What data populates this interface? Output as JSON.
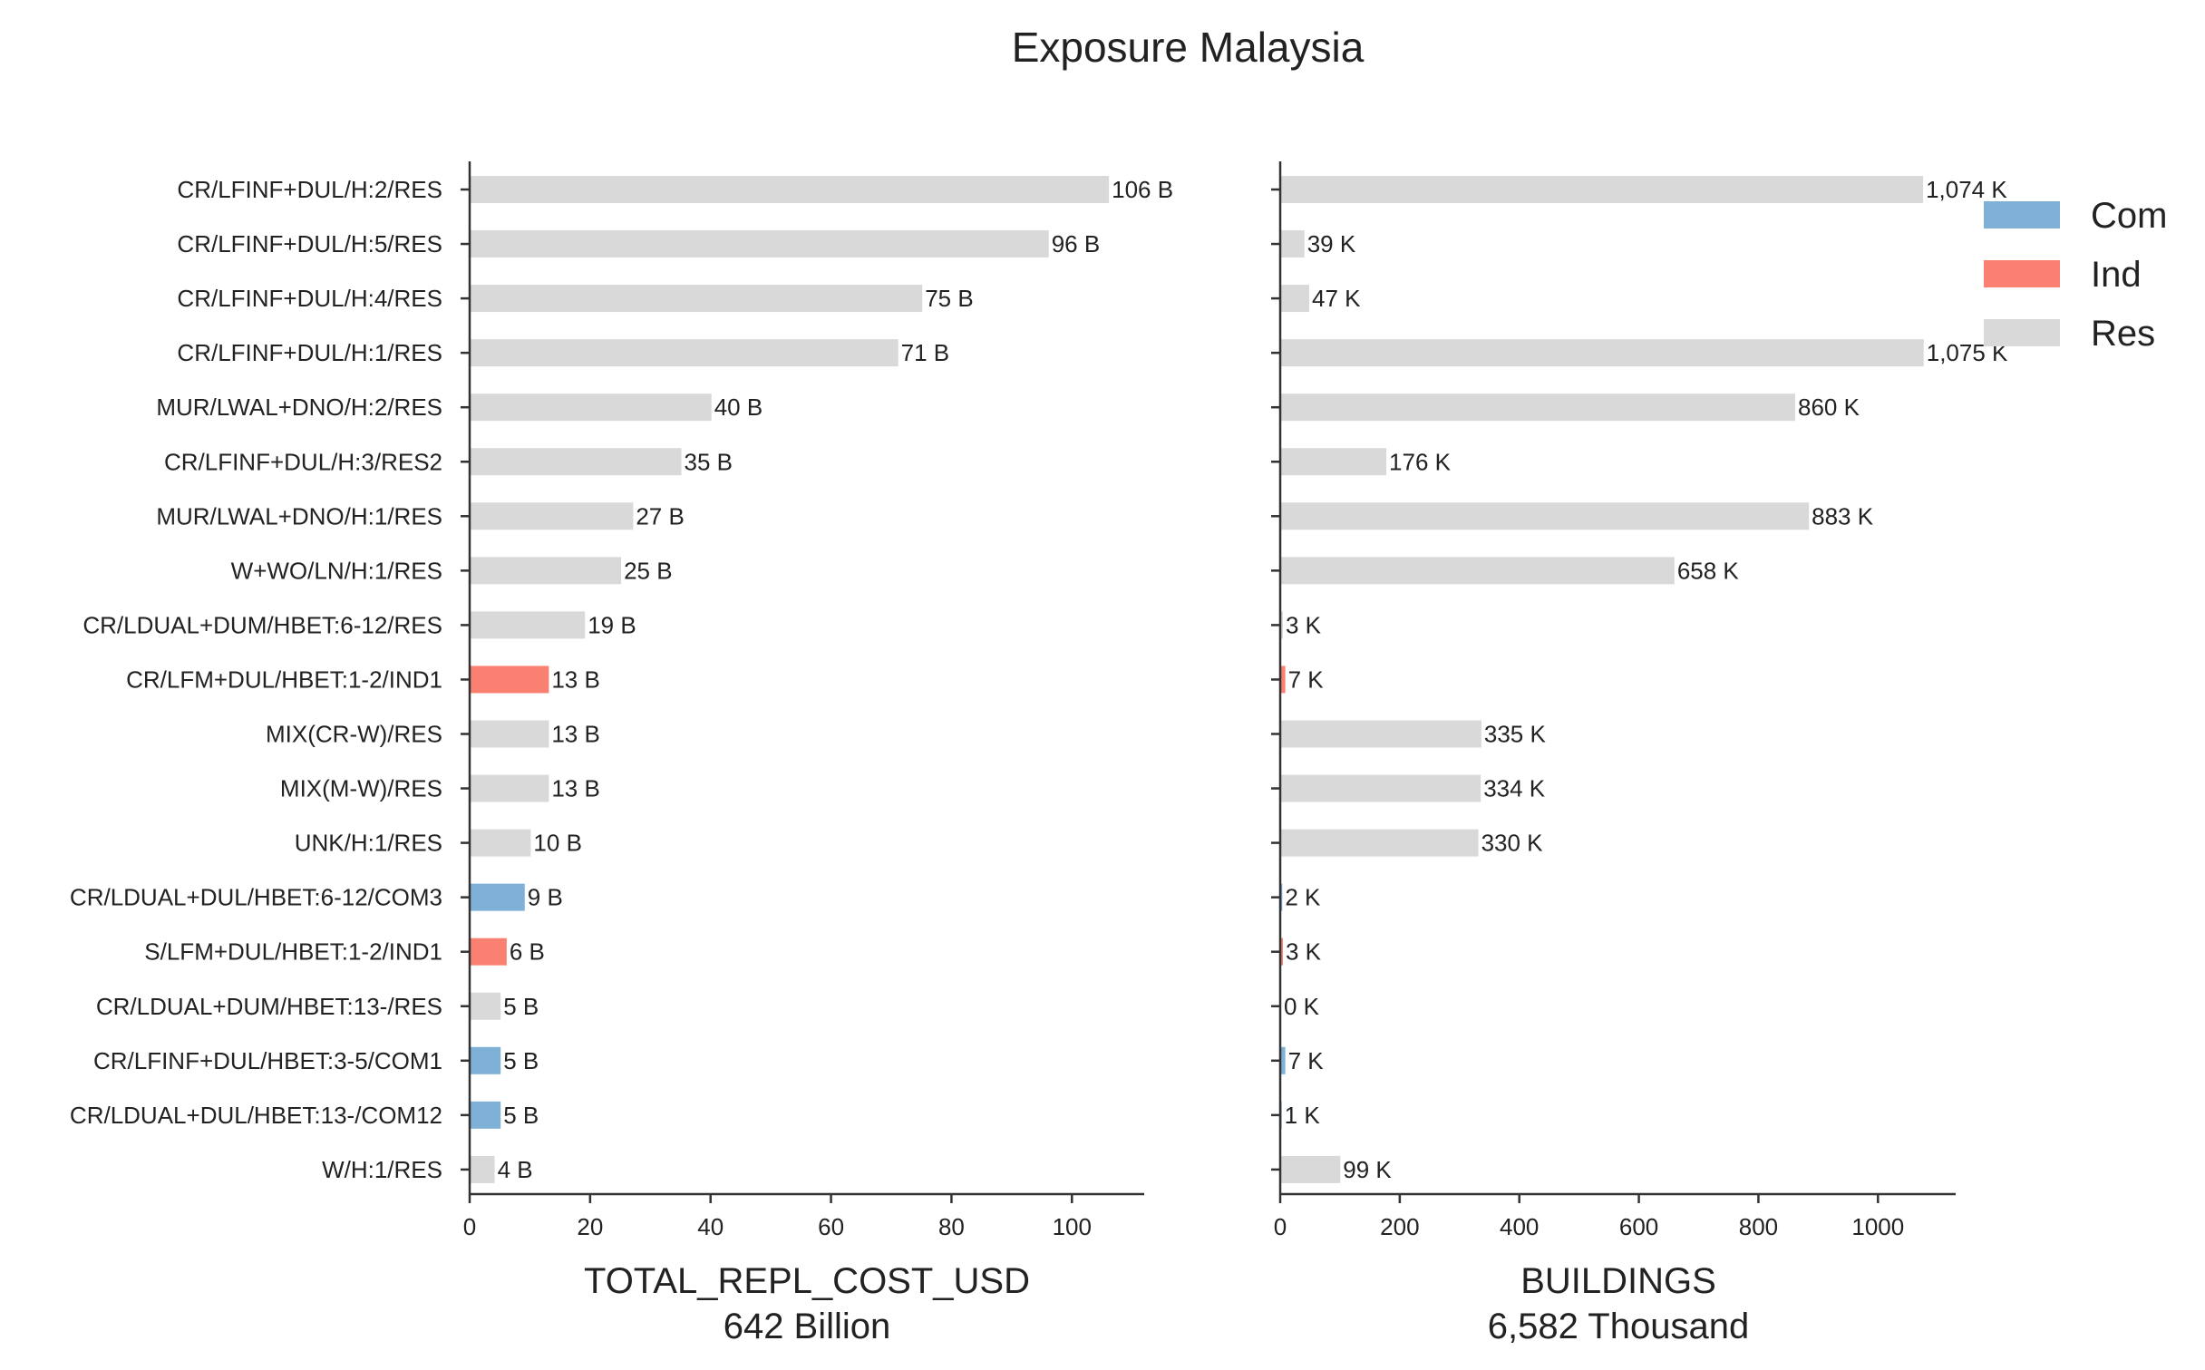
{
  "chart_data": {
    "type": "bar",
    "orientation": "horizontal",
    "title": "Exposure Malaysia",
    "categories": [
      "CR/LFINF+DUL/H:2/RES",
      "CR/LFINF+DUL/H:5/RES",
      "CR/LFINF+DUL/H:4/RES",
      "CR/LFINF+DUL/H:1/RES",
      "MUR/LWAL+DNO/H:2/RES",
      "CR/LFINF+DUL/H:3/RES2",
      "MUR/LWAL+DNO/H:1/RES",
      "W+WO/LN/H:1/RES",
      "CR/LDUAL+DUM/HBET:6-12/RES",
      "CR/LFM+DUL/HBET:1-2/IND1",
      "MIX(CR-W)/RES",
      "MIX(M-W)/RES",
      "UNK/H:1/RES",
      "CR/LDUAL+DUL/HBET:6-12/COM3",
      "S/LFM+DUL/HBET:1-2/IND1",
      "CR/LDUAL+DUM/HBET:13-/RES",
      "CR/LFINF+DUL/HBET:3-5/COM1",
      "CR/LDUAL+DUL/HBET:13-/COM12",
      "W/H:1/RES"
    ],
    "occupancy": [
      "Res",
      "Res",
      "Res",
      "Res",
      "Res",
      "Res",
      "Res",
      "Res",
      "Res",
      "Ind",
      "Res",
      "Res",
      "Res",
      "Com",
      "Ind",
      "Res",
      "Com",
      "Com",
      "Res"
    ],
    "legend": {
      "position": "top-right",
      "items": [
        {
          "name": "Com",
          "color": "#7fb0d5"
        },
        {
          "name": "Ind",
          "color": "#fa8072"
        },
        {
          "name": "Res",
          "color": "#d9d9d9"
        }
      ]
    },
    "panels": [
      {
        "xlabel": "TOTAL_REPL_COST_USD",
        "total": "642 Billion",
        "xlim": [
          0,
          112
        ],
        "xticks": [
          0,
          20,
          40,
          60,
          80,
          100
        ],
        "values": [
          106,
          96,
          75,
          71,
          40,
          35,
          27,
          25,
          19,
          13,
          13,
          13,
          10,
          9,
          6,
          5,
          5,
          5,
          4
        ],
        "value_labels": [
          "106 B",
          "96 B",
          "75 B",
          "71 B",
          "40 B",
          "35 B",
          "27 B",
          "25 B",
          "19 B",
          "13 B",
          "13 B",
          "13 B",
          "10 B",
          "9 B",
          "6 B",
          "5 B",
          "5 B",
          "5 B",
          "4 B"
        ]
      },
      {
        "xlabel": "BUILDINGS",
        "total": "6,582 Thousand",
        "xlim": [
          0,
          1130
        ],
        "xticks": [
          0,
          200,
          400,
          600,
          800,
          1000
        ],
        "values": [
          1074,
          39,
          47,
          1075,
          860,
          176,
          883,
          658,
          3,
          7,
          335,
          334,
          330,
          2,
          3,
          0,
          7,
          1,
          99
        ],
        "value_labels": [
          "1,074 K",
          "39 K",
          "47 K",
          "1,075 K",
          "860 K",
          "176 K",
          "883 K",
          "658 K",
          "3 K",
          "7 K",
          "335 K",
          "334 K",
          "330 K",
          "2 K",
          "3 K",
          "0 K",
          "7 K",
          "1 K",
          "99 K"
        ]
      }
    ]
  }
}
